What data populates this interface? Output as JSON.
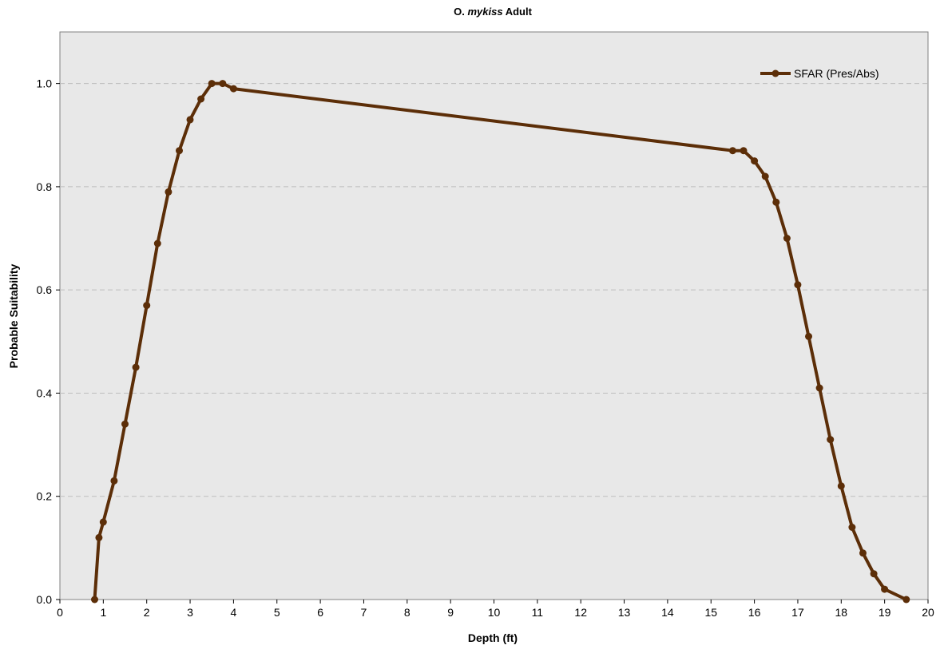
{
  "chart_data": {
    "type": "line",
    "title": {
      "prefix": "O.",
      "italic": "mykiss",
      "suffix": "Adult"
    },
    "xlabel": "Depth (ft)",
    "ylabel": "Probable Suitability",
    "xlim": [
      0,
      20
    ],
    "ylim": [
      0,
      1.1
    ],
    "xticks": [
      0,
      1,
      2,
      3,
      4,
      5,
      6,
      7,
      8,
      9,
      10,
      11,
      12,
      13,
      14,
      15,
      16,
      17,
      18,
      19,
      20
    ],
    "yticks": [
      0.0,
      0.2,
      0.4,
      0.6,
      0.8,
      1.0
    ],
    "ytick_labels": [
      "0.0",
      "0.2",
      "0.4",
      "0.6",
      "0.8",
      "1.0"
    ],
    "grid": "horizontal dashed",
    "legend_position": "top-right",
    "series": [
      {
        "name": "SFAR (Pres/Abs)",
        "color": "#5c2e08",
        "points": [
          [
            0.8,
            0.0
          ],
          [
            0.9,
            0.12
          ],
          [
            1.0,
            0.15
          ],
          [
            1.25,
            0.23
          ],
          [
            1.5,
            0.34
          ],
          [
            1.75,
            0.45
          ],
          [
            2.0,
            0.57
          ],
          [
            2.25,
            0.69
          ],
          [
            2.5,
            0.79
          ],
          [
            2.75,
            0.87
          ],
          [
            3.0,
            0.93
          ],
          [
            3.25,
            0.97
          ],
          [
            3.5,
            1.0
          ],
          [
            3.75,
            1.0
          ],
          [
            4.0,
            0.99
          ],
          [
            15.5,
            0.87
          ],
          [
            15.75,
            0.87
          ],
          [
            16.0,
            0.85
          ],
          [
            16.25,
            0.82
          ],
          [
            16.5,
            0.77
          ],
          [
            16.75,
            0.7
          ],
          [
            17.0,
            0.61
          ],
          [
            17.25,
            0.51
          ],
          [
            17.5,
            0.41
          ],
          [
            17.75,
            0.31
          ],
          [
            18.0,
            0.22
          ],
          [
            18.25,
            0.14
          ],
          [
            18.5,
            0.09
          ],
          [
            18.75,
            0.05
          ],
          [
            19.0,
            0.02
          ],
          [
            19.5,
            0.0
          ]
        ]
      }
    ]
  },
  "colors": {
    "plot_background": "#e8e8e8",
    "gridline": "#bdbdbd",
    "series": "#5c2e08"
  }
}
